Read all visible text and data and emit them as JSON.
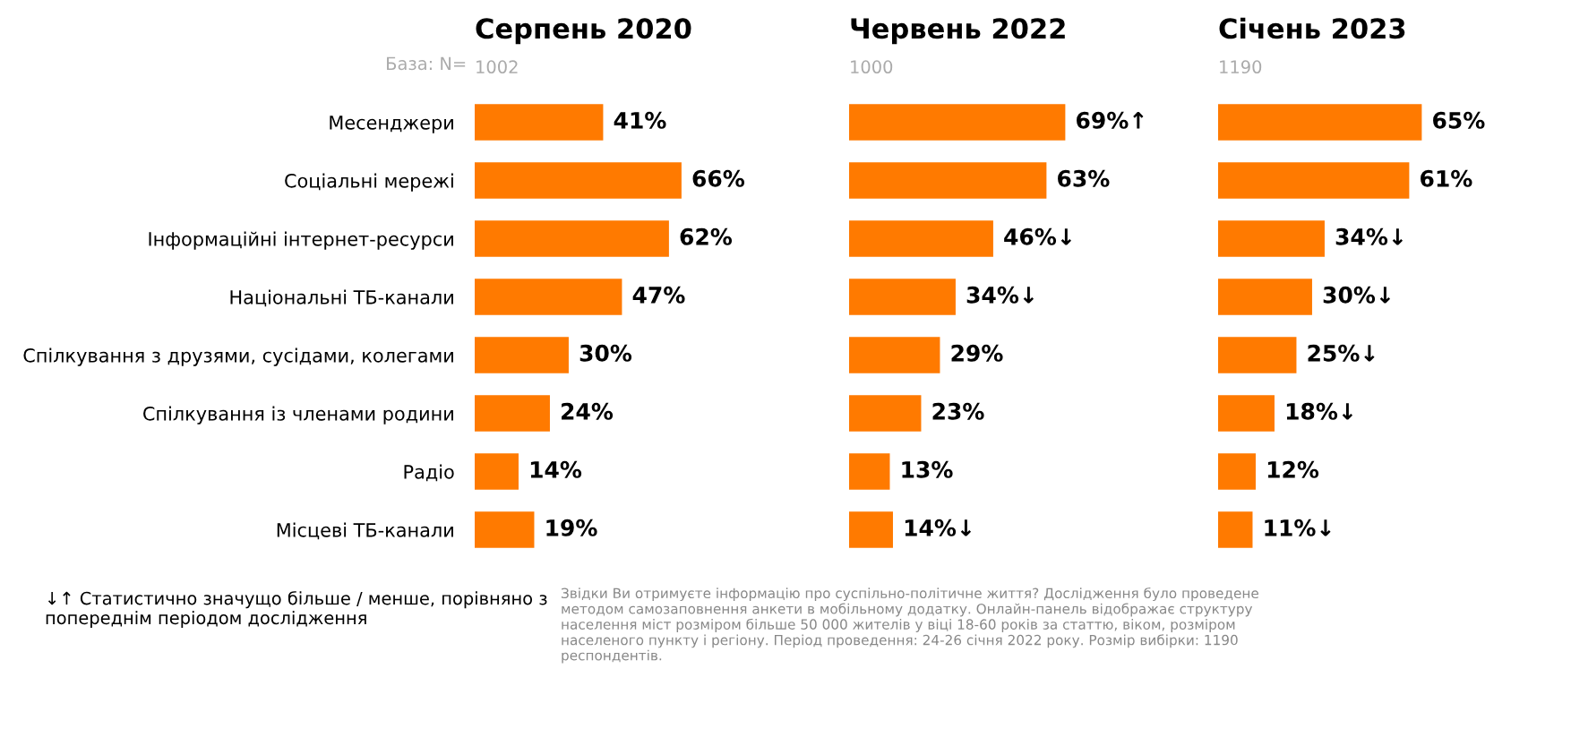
{
  "chart_data": [
    {
      "type": "bar",
      "orientation": "horizontal",
      "title": "Серпень 2020",
      "subtitle": "1002",
      "categories": [
        "Месенджери",
        "Соціальні мережі",
        "Інформаційні інтернет-ресурси",
        "Національні ТБ-канали",
        "Спілкування з друзями, сусідами, колегами",
        "Спілкування із членами родини",
        "Радіо",
        "Місцеві ТБ-канали"
      ],
      "values": [
        41,
        66,
        62,
        47,
        30,
        24,
        14,
        19
      ],
      "color": "#ff7a00",
      "value_labels": [
        "41%",
        "66%",
        "62%",
        "47%",
        "30%",
        "24%",
        "14%",
        "19%"
      ],
      "tick_labels": "y",
      "annotations": [
        "База: N=",
        "↓↑ Статистично значущо більше / менше, порівняно з попереднім періодом дослідження"
      ]
    },
    {
      "type": "bar",
      "orientation": "horizontal",
      "title": "Червень 2022",
      "subtitle": "1000",
      "categories": [
        null,
        null,
        null,
        null,
        null,
        null,
        null,
        null
      ],
      "values": [
        69,
        63,
        46,
        34,
        29,
        23,
        13,
        14
      ],
      "color": "#ff7a00",
      "value_labels": [
        "69%↑",
        "63%",
        "46%↓",
        "34%↓",
        "29%",
        "23%",
        "13%",
        "14%↓"
      ],
      "tick_labels": false,
      "annotations": [
        "Звідки Ви отримуєте інформацію про суспільно-політичне життя? Дослідження було проведене методом самозаповнення анкети в мобільному додатку. Онлайн-панель відображає структуру населення міст розміром більше 50 000 жителів у віці 18-60 років за статтю, віком, розміром населеного пункту і регіону. Період проведення: 24-26 січня 2022 року. Розмір вибірки: 1190 респондентів."
      ]
    },
    {
      "type": "bar",
      "orientation": "horizontal",
      "title": "Січень 2023",
      "subtitle": "1190",
      "categories": [
        null,
        null,
        null,
        null,
        null,
        null,
        null,
        null
      ],
      "values": [
        65,
        61,
        34,
        30,
        25,
        18,
        12,
        11
      ],
      "color": "#ff7a00",
      "value_labels": [
        "65%",
        "61%",
        "34%↓",
        "30%↓",
        "25%↓",
        "18%↓",
        "12%",
        "11%↓"
      ],
      "tick_labels": false
    }
  ]
}
